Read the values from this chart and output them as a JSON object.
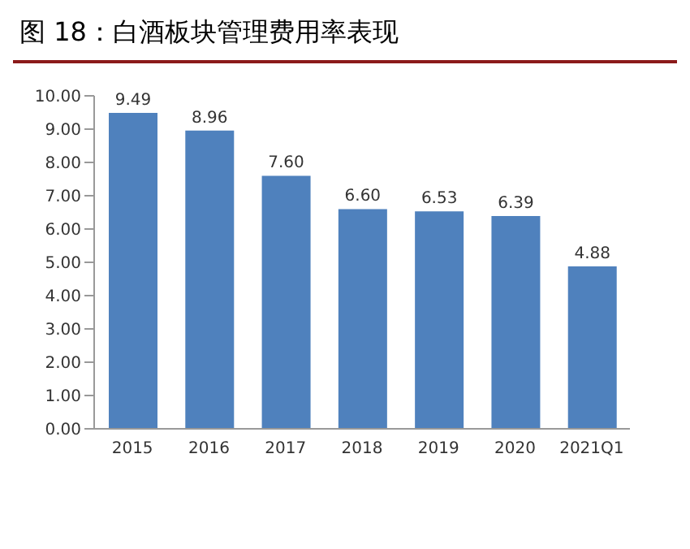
{
  "chart_data": {
    "type": "bar",
    "title": "图 18：白酒板块管理费用率表现",
    "categories": [
      "2015",
      "2016",
      "2017",
      "2018",
      "2019",
      "2020",
      "2021Q1"
    ],
    "values": [
      9.49,
      8.96,
      7.6,
      6.6,
      6.53,
      6.39,
      4.88
    ],
    "value_labels": [
      "9.49",
      "8.96",
      "7.60",
      "6.60",
      "6.53",
      "6.39",
      "4.88"
    ],
    "color": "#4f81bd",
    "ylim": [
      0,
      10
    ],
    "yticks": [
      {
        "value": 0,
        "label": "0.00"
      },
      {
        "value": 1,
        "label": "1.00"
      },
      {
        "value": 2,
        "label": "2.00"
      },
      {
        "value": 3,
        "label": "3.00"
      },
      {
        "value": 4,
        "label": "4.00"
      },
      {
        "value": 5,
        "label": "5.00"
      },
      {
        "value": 6,
        "label": "6.00"
      },
      {
        "value": 7,
        "label": "7.00"
      },
      {
        "value": 8,
        "label": "8.00"
      },
      {
        "value": 9,
        "label": "9.00"
      },
      {
        "value": 10,
        "label": "10.00"
      }
    ]
  }
}
